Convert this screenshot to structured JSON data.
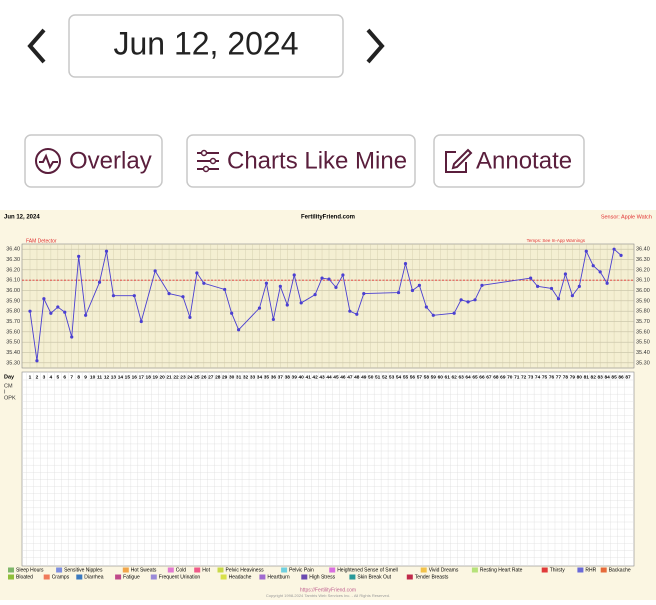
{
  "header": {
    "date": "Jun 12, 2024"
  },
  "buttons": [
    "Overlay",
    "Charts Like Mine",
    "Annotate"
  ],
  "chart_data": {
    "type": "line",
    "title": "FertilityFriend.com",
    "chart_date": "Jun 12, 2024",
    "sensor": "Sensor: Apple Watch",
    "detector": "FAM Detector",
    "temp_note": "Temps: See In-App Warnings",
    "x_label": "Day",
    "row_labels": [
      "CM",
      "I",
      "OPK"
    ],
    "x": [
      1,
      2,
      3,
      4,
      5,
      6,
      7,
      8,
      9,
      11,
      12,
      13,
      16,
      17,
      19,
      21,
      23,
      24,
      25,
      26,
      29,
      30,
      31,
      34,
      35,
      36,
      37,
      38,
      39,
      40,
      42,
      43,
      44,
      45,
      46,
      47,
      48,
      49,
      54,
      55,
      56,
      57,
      58,
      59,
      62,
      63,
      64,
      65,
      66,
      73,
      74,
      76,
      77,
      78,
      79,
      80,
      81,
      82,
      83,
      84,
      85,
      86
    ],
    "series": [
      {
        "name": "Temperature",
        "color": "#4a3fd1",
        "values": [
          35.8,
          35.32,
          35.92,
          35.78,
          35.84,
          35.79,
          35.55,
          36.33,
          35.76,
          36.08,
          36.38,
          35.95,
          35.95,
          35.7,
          36.19,
          35.97,
          35.94,
          35.74,
          36.17,
          36.07,
          36.01,
          35.78,
          35.62,
          35.83,
          36.07,
          35.72,
          36.04,
          35.86,
          36.15,
          35.88,
          35.96,
          36.12,
          36.11,
          36.03,
          36.15,
          35.8,
          35.77,
          35.97,
          35.98,
          36.26,
          36.0,
          36.05,
          35.84,
          35.76,
          35.78,
          35.91,
          35.89,
          35.91,
          36.05,
          36.12,
          36.04,
          36.02,
          35.92,
          36.16,
          35.95,
          36.04,
          36.38,
          36.24,
          36.18,
          36.07,
          36.4,
          36.34
        ]
      }
    ],
    "coverline": 36.1,
    "coverline_color": "#e03030",
    "xlim": [
      1,
      87
    ],
    "xticks": [
      1,
      2,
      3,
      4,
      5,
      6,
      7,
      8,
      9,
      10,
      11,
      12,
      13,
      14,
      15,
      16,
      17,
      18,
      19,
      20,
      21,
      22,
      23,
      24,
      25,
      26,
      27,
      28,
      29,
      30,
      31,
      32,
      33,
      34,
      35,
      36,
      37,
      38,
      39,
      40,
      41,
      42,
      43,
      44,
      45,
      46,
      47,
      48,
      49,
      50,
      51,
      52,
      53,
      54,
      55,
      56,
      57,
      58,
      59,
      60,
      61,
      62,
      63,
      64,
      65,
      66,
      67,
      68,
      69,
      70,
      71,
      72,
      73,
      74,
      75,
      76,
      77,
      78,
      79,
      80,
      81,
      82,
      83,
      84,
      85,
      86,
      87
    ],
    "ylim": [
      35.25,
      36.45
    ],
    "yticks": [
      {
        "value": 35.3,
        "label": "35.30"
      },
      {
        "value": 35.4,
        "label": "35.40"
      },
      {
        "value": 35.5,
        "label": "35.50"
      },
      {
        "value": 35.6,
        "label": "35.60"
      },
      {
        "value": 35.7,
        "label": "35.70"
      },
      {
        "value": 35.8,
        "label": "35.80"
      },
      {
        "value": 35.9,
        "label": "35.90"
      },
      {
        "value": 36.0,
        "label": "36.00"
      },
      {
        "value": 36.1,
        "label": "36.10"
      },
      {
        "value": 36.2,
        "label": "36.20"
      },
      {
        "value": 36.3,
        "label": "36.30"
      },
      {
        "value": 36.4,
        "label": "36.40"
      }
    ],
    "grid": true,
    "legend": [
      {
        "name": "Sleep Hours",
        "color": "#7fb76a"
      },
      {
        "name": "Sensitive Nipples",
        "color": "#7e8fe0"
      },
      {
        "name": "Hot Sweats",
        "color": "#f2a64a"
      },
      {
        "name": "Cold",
        "color": "#e27ad0"
      },
      {
        "name": "Hot",
        "color": "#f05a8a"
      },
      {
        "name": "Pelvic Heaviness",
        "color": "#c9d94a"
      },
      {
        "name": "Pelvic Pain",
        "color": "#6fd0e0"
      },
      {
        "name": "Heightened Sense of Smell",
        "color": "#d86fe0"
      },
      {
        "name": "Vivid Dreams",
        "color": "#f2c24a"
      },
      {
        "name": "Resting Heart Rate",
        "color": "#b6e27a"
      },
      {
        "name": "Thirsty",
        "color": "#e03a3a"
      },
      {
        "name": "RHR",
        "color": "#6a6ad8"
      },
      {
        "name": "Backache",
        "color": "#e66a3a"
      },
      {
        "name": "Bloated",
        "color": "#8fbf3a"
      },
      {
        "name": "Cramps",
        "color": "#f07a5a"
      },
      {
        "name": "Diarrhea",
        "color": "#3a7ac0"
      },
      {
        "name": "Fatigue",
        "color": "#c04a8a"
      },
      {
        "name": "Frequent Urination",
        "color": "#9a8ad8"
      },
      {
        "name": "Headache",
        "color": "#d8e04a"
      },
      {
        "name": "Heartburn",
        "color": "#a06ad0"
      },
      {
        "name": "High Stress",
        "color": "#6a4ab0"
      },
      {
        "name": "Skin Break Out",
        "color": "#2a9a9a"
      },
      {
        "name": "Tender Breasts",
        "color": "#c02a4a"
      }
    ],
    "footer_url": "https://FertilityFriend.com",
    "copyright": "Copyright 1998-2024 Tamtris Web Services Inc. - All Rights Reserved."
  }
}
